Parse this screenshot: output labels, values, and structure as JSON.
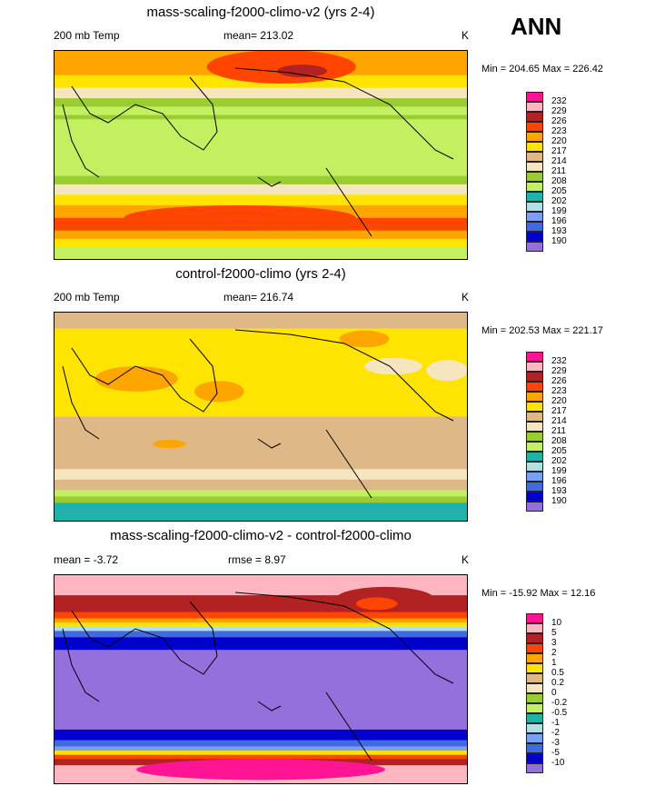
{
  "season": "ANN",
  "panels": [
    {
      "title": "mass-scaling-f2000-climo-v2 (yrs 2-4)",
      "left": "200 mb Temp",
      "center": "mean= 213.02",
      "units": "K",
      "minmax": "Min = 204.65 Max = 226.42",
      "levels": [
        "232",
        "229",
        "226",
        "223",
        "220",
        "217",
        "214",
        "211",
        "208",
        "205",
        "202",
        "199",
        "196",
        "193",
        "190"
      ]
    },
    {
      "title": "control-f2000-climo (yrs 2-4)",
      "left": "200 mb Temp",
      "center": "mean= 216.74",
      "units": "K",
      "minmax": "Min = 202.53 Max = 221.17",
      "levels": [
        "232",
        "229",
        "226",
        "223",
        "220",
        "217",
        "214",
        "211",
        "208",
        "205",
        "202",
        "199",
        "196",
        "193",
        "190"
      ]
    },
    {
      "title": "mass-scaling-f2000-climo-v2 - control-f2000-climo",
      "left": "mean =  -3.72",
      "center": "rmse =   8.97",
      "units": "K",
      "minmax": "Min = -15.92 Max =  12.16",
      "levels": [
        "10",
        "5",
        "3",
        "2",
        "1",
        "0.5",
        "0.2",
        "0",
        "-0.2",
        "-0.5",
        "-1",
        "-2",
        "-3",
        "-5",
        "-10"
      ]
    }
  ],
  "colors": [
    "#ff1493",
    "#ffb6c1",
    "#b22222",
    "#ff4500",
    "#ffa500",
    "#ffe400",
    "#deb887",
    "#f5e6c0",
    "#9acd32",
    "#c2f060",
    "#20b2aa",
    "#b0e0e6",
    "#7b9ff2",
    "#4169e1",
    "#0000cd",
    "#9370db"
  ]
}
